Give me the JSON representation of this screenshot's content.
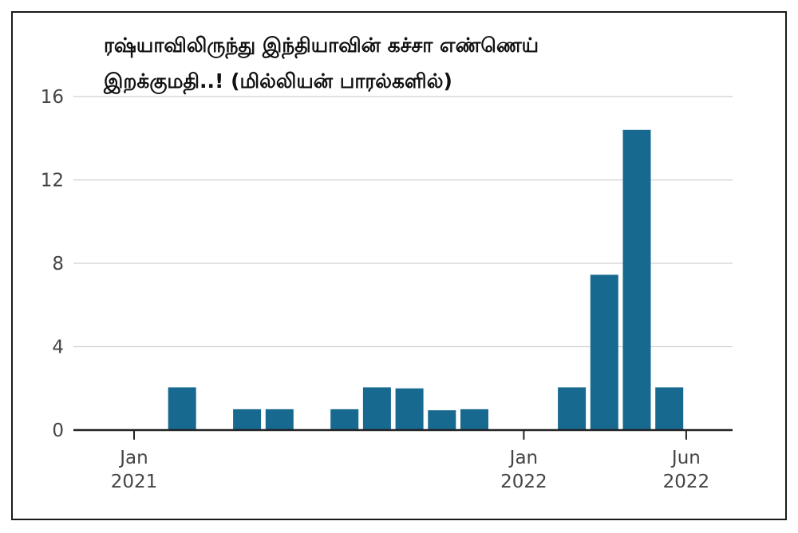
{
  "chart_data": {
    "type": "bar",
    "title": "ரஷ்யாவிலிருந்து இந்தியாவின் கச்சா எண்ணெய் இறக்குமதி..! (மில்லியன் பாரல்களில்)",
    "xlabel": "",
    "ylabel": "",
    "ylim": [
      0,
      16
    ],
    "yticks": [
      0,
      4,
      8,
      12,
      16
    ],
    "grid": true,
    "bar_color": "#17698f",
    "gridline_color": "#d0d0d0",
    "axis_color": "#222222",
    "categories": [
      "2021-01",
      "2021-02",
      "2021-03",
      "2021-04",
      "2021-05",
      "2021-06",
      "2021-07",
      "2021-08",
      "2021-09",
      "2021-10",
      "2021-11",
      "2021-12",
      "2022-01",
      "2022-02",
      "2022-03",
      "2022-04",
      "2022-05",
      "2022-06"
    ],
    "values": [
      0,
      2.05,
      0,
      1.0,
      1.0,
      0,
      1.0,
      2.05,
      2.0,
      0.95,
      1.0,
      0,
      0,
      2.05,
      7.45,
      14.4,
      2.05,
      null
    ],
    "xticks": [
      {
        "index": 0,
        "line1": "Jan",
        "line2": "2021"
      },
      {
        "index": 12,
        "line1": "Jan",
        "line2": "2022"
      },
      {
        "index": 17,
        "line1": "Jun",
        "line2": "2022"
      }
    ]
  }
}
